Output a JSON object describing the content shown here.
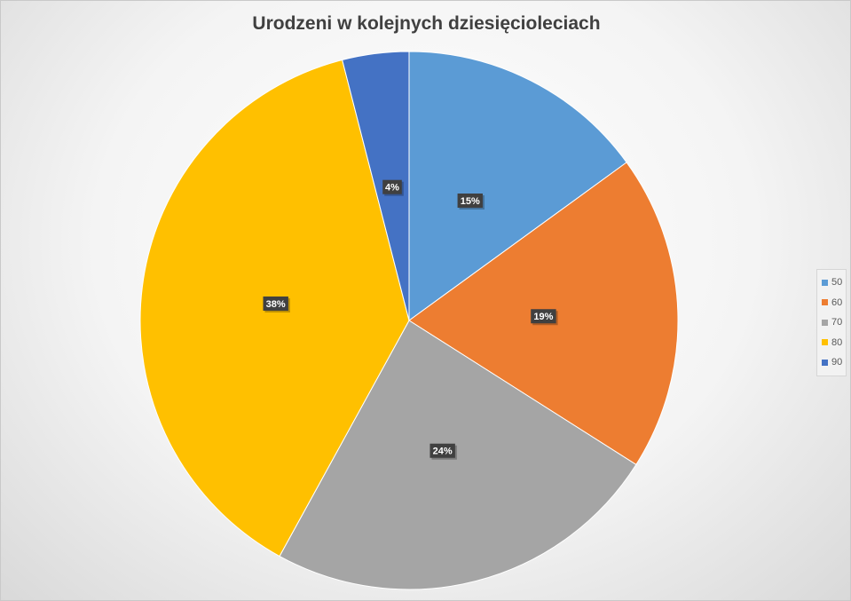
{
  "chart_data": {
    "type": "pie",
    "title": "Urodzeni w kolejnych dziesięcioleciach",
    "categories": [
      "50",
      "60",
      "70",
      "80",
      "90"
    ],
    "values": [
      15,
      19,
      24,
      38,
      4
    ],
    "labels": [
      "15%",
      "19%",
      "24%",
      "38%",
      "4%"
    ],
    "colors": [
      "#5b9bd5",
      "#ed7d31",
      "#a5a5a5",
      "#ffc000",
      "#4472c4"
    ],
    "legend": "right",
    "start_angle": "12 o'clock",
    "direction": "clockwise"
  }
}
